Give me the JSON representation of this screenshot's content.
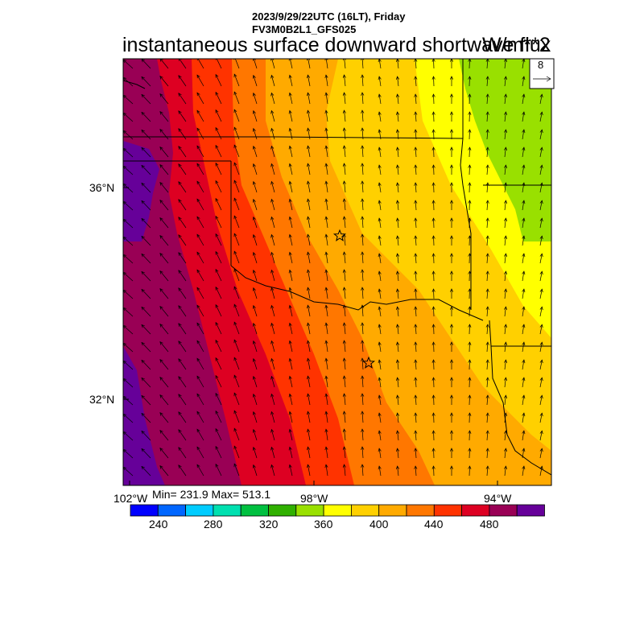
{
  "header": {
    "datetime": "2023/9/29/22UTC (16LT), Friday",
    "model": "FV3M0B2L1_GFS025",
    "variable": "instantaneous surface downward shortwave flux",
    "units": "W/m**2"
  },
  "vector_legend": {
    "reference_value": "8"
  },
  "axes": {
    "lat_labels": [
      "36°N",
      "32°N"
    ],
    "lon_labels": [
      "102°W",
      "98°W",
      "94°W"
    ]
  },
  "stats": {
    "text": "Min= 231.9 Max= 513.1"
  },
  "colorbar": {
    "colors": [
      "#0000ff",
      "#0066ff",
      "#00ccff",
      "#00e0b0",
      "#00c040",
      "#30b000",
      "#99e000",
      "#ffff00",
      "#ffd000",
      "#ffaa00",
      "#ff7700",
      "#ff3300",
      "#dd0022",
      "#990055",
      "#660099"
    ],
    "labels": [
      "240",
      "280",
      "320",
      "360",
      "400",
      "440",
      "480"
    ]
  },
  "map_colors": {
    "purple": "#660099",
    "maroon": "#990055",
    "red": "#dd0022",
    "redorange": "#ff3300",
    "orange": "#ff7700",
    "lightorange": "#ffaa00",
    "gold": "#ffd000",
    "yellow": "#ffff00",
    "green": "#99e000"
  },
  "markers": [
    {
      "name": "city-marker-oklahoma-city",
      "symbol": "star"
    },
    {
      "name": "city-marker-dallas",
      "symbol": "star"
    }
  ]
}
